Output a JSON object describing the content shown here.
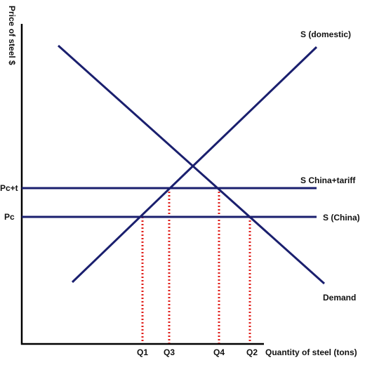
{
  "axes": {
    "y_title": "Price of steel $",
    "x_title": "Quantity of steel (tons)"
  },
  "curves": {
    "supply_domestic": "S (domestic)",
    "supply_china_tariff": "S China+tariff",
    "supply_china": "S (China)",
    "demand": "Demand"
  },
  "price_labels": {
    "pc_tariff": "Pc+t",
    "pc": "Pc"
  },
  "quantity_labels": {
    "q1": "Q1",
    "q3": "Q3",
    "q4": "Q4",
    "q2": "Q2"
  },
  "colors": {
    "curve": "#1a1f6e",
    "axis": "#000000",
    "guide": "#e0201c",
    "text": "#111111"
  }
}
